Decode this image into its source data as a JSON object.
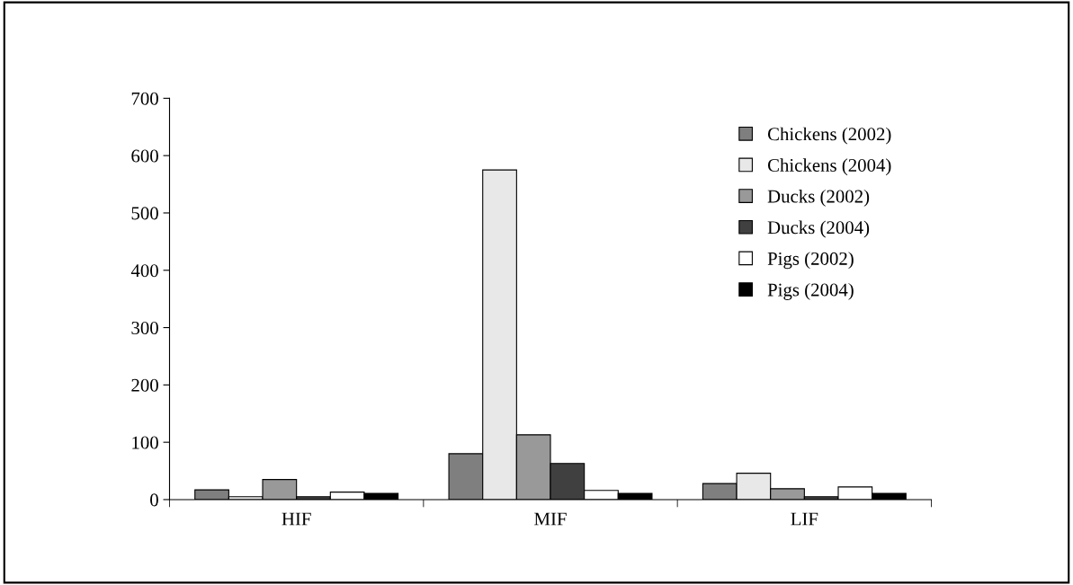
{
  "chart_data": {
    "type": "bar",
    "categories": [
      "HIF",
      "MIF",
      "LIF"
    ],
    "series": [
      {
        "name": "Chickens (2002)",
        "color": "#7f7f7f",
        "values": [
          17,
          80,
          28
        ]
      },
      {
        "name": "Chickens (2004)",
        "color": "#e8e8e8",
        "values": [
          5,
          575,
          46
        ]
      },
      {
        "name": "Ducks (2002)",
        "color": "#999999",
        "values": [
          35,
          113,
          19
        ]
      },
      {
        "name": "Ducks (2004)",
        "color": "#404040",
        "values": [
          5,
          63,
          5
        ]
      },
      {
        "name": "Pigs (2002)",
        "color": "#ffffff",
        "values": [
          13,
          16,
          22
        ]
      },
      {
        "name": "Pigs (2004)",
        "color": "#000000",
        "values": [
          11,
          11,
          11
        ]
      }
    ],
    "ylim": [
      0,
      700
    ],
    "yticks": [
      0,
      100,
      200,
      300,
      400,
      500,
      600,
      700
    ],
    "grid": false,
    "legend": "top right"
  }
}
